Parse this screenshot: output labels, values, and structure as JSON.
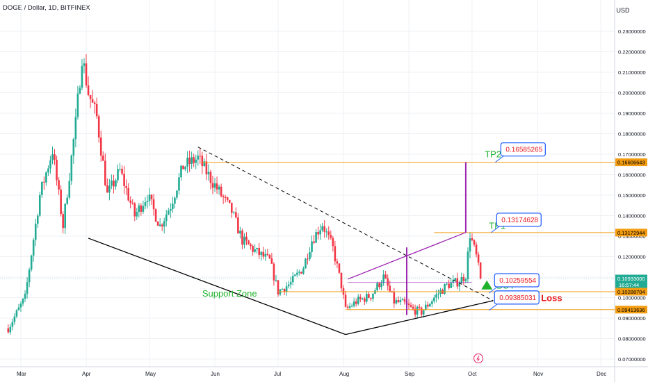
{
  "header": {
    "title": "DOGE / Dollar, 1D, BITFINEX",
    "currency": "USD"
  },
  "colors": {
    "up": "#22ab94",
    "down": "#f23645",
    "grid": "#eef0f4",
    "orange": "#f39c12",
    "purple": "#9c27b0",
    "green_text": "#1fb32c",
    "red_text": "#e8191e",
    "blue_box": "#2962ff"
  },
  "chart_data": {
    "type": "candlestick",
    "symbol": "DOGE / Dollar",
    "interval": "1D",
    "exchange": "BITFINEX",
    "y_axis": {
      "ticks": [
        0.07,
        0.08,
        0.09,
        0.1,
        0.11,
        0.12,
        0.13,
        0.14,
        0.15,
        0.16,
        0.17,
        0.18,
        0.19,
        0.2,
        0.21,
        0.22,
        0.23
      ],
      "tick_labels": [
        "0.07000000",
        "0.08000000",
        "0.09000000",
        "0.10000000",
        "0.11000000",
        "0.12000000",
        "0.13000000",
        "0.14000000",
        "0.15000000",
        "0.16000000",
        "0.17000000",
        "0.18000000",
        "0.19000000",
        "0.20000000",
        "0.21000000",
        "0.22000000",
        "0.23000000"
      ],
      "ylim": [
        0.0675,
        0.238
      ]
    },
    "x_axis": {
      "months": [
        "Mar",
        "Apr",
        "May",
        "Jun",
        "Jul",
        "Aug",
        "Sep",
        "Oct",
        "Nov",
        "Dec"
      ],
      "day_offsets": [
        0,
        31,
        61,
        92,
        122,
        153,
        184,
        214,
        245,
        275
      ],
      "xlim_days": [
        -7,
        290
      ]
    },
    "price_points": [
      [
        -6,
        0.085
      ],
      [
        2,
        0.1
      ],
      [
        9,
        0.15
      ],
      [
        15,
        0.172
      ],
      [
        20,
        0.135
      ],
      [
        26,
        0.185
      ],
      [
        29,
        0.218
      ],
      [
        32,
        0.2
      ],
      [
        36,
        0.188
      ],
      [
        41,
        0.15
      ],
      [
        47,
        0.162
      ],
      [
        54,
        0.14
      ],
      [
        60,
        0.15
      ],
      [
        66,
        0.135
      ],
      [
        71,
        0.145
      ],
      [
        77,
        0.164
      ],
      [
        84,
        0.168
      ],
      [
        90,
        0.158
      ],
      [
        95,
        0.15
      ],
      [
        100,
        0.142
      ],
      [
        105,
        0.128
      ],
      [
        112,
        0.122
      ],
      [
        118,
        0.118
      ],
      [
        122,
        0.103
      ],
      [
        128,
        0.107
      ],
      [
        134,
        0.115
      ],
      [
        138,
        0.128
      ],
      [
        143,
        0.136
      ],
      [
        148,
        0.124
      ],
      [
        152,
        0.106
      ],
      [
        154,
        0.094
      ],
      [
        159,
        0.098
      ],
      [
        166,
        0.101
      ],
      [
        172,
        0.11
      ],
      [
        177,
        0.098
      ],
      [
        182,
        0.097
      ],
      [
        186,
        0.094
      ],
      [
        190,
        0.093
      ],
      [
        196,
        0.1
      ],
      [
        202,
        0.106
      ],
      [
        208,
        0.108
      ],
      [
        211,
        0.111
      ],
      [
        213,
        0.131
      ],
      [
        216,
        0.12
      ],
      [
        218,
        0.1093
      ]
    ],
    "current_price": 0.10933,
    "levels": [
      {
        "name": "TP2",
        "value": 0.16606643,
        "label": "0.16606643",
        "box": "0.16585265"
      },
      {
        "name": "TP1",
        "value": 0.13172944,
        "label": "0.13172944",
        "box": "0.13174628"
      },
      {
        "name": "BUY",
        "value": 0.10288704,
        "label": "0.10288704",
        "box": "0.10259554"
      },
      {
        "name": "Stop Loss",
        "value": 0.09413636,
        "label": "0.09413636",
        "box": "0.09385031"
      }
    ],
    "price_labels": {
      "current": "0.10933000",
      "countdown": "16:57:44"
    },
    "annotations": {
      "support_zone": "Support Zone",
      "tp2": "TP2",
      "tp1": "TP1",
      "buy": "BUY",
      "stop_loss": "Stop Loss"
    }
  }
}
